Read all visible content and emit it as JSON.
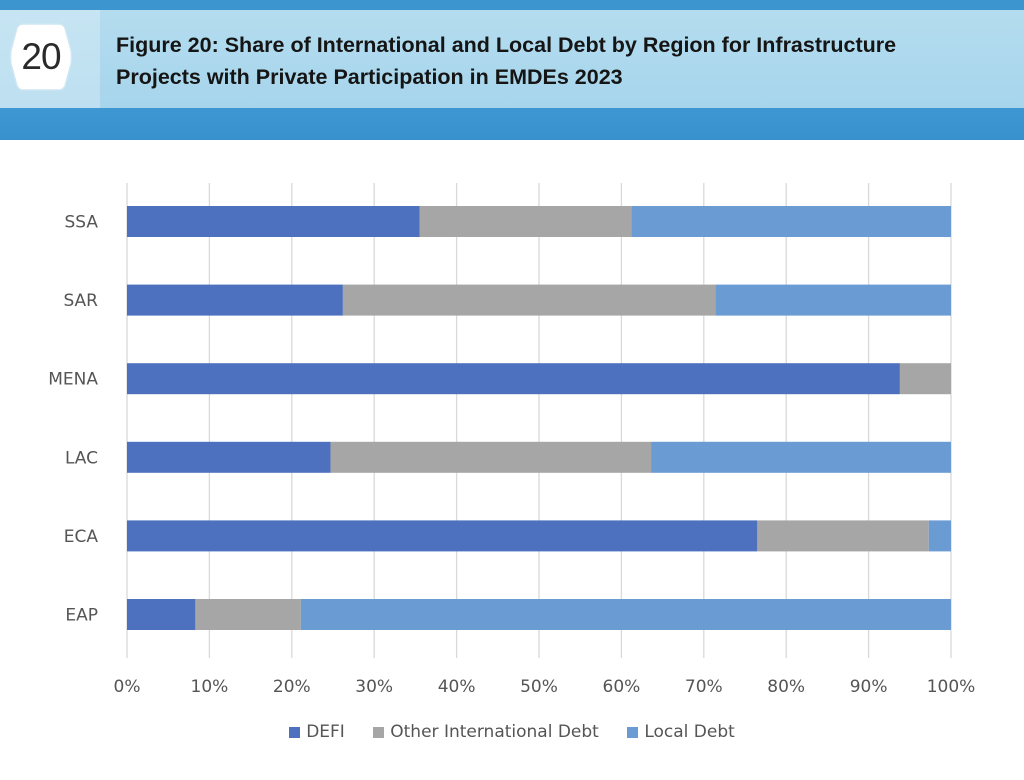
{
  "header": {
    "figure_number": "20",
    "title_line1": "Figure 20: Share of International and Local Debt by Region for Infrastructure",
    "title_line2": "Projects with Private Participation in EMDEs 2023"
  },
  "colors": {
    "defi": "#4e71bf",
    "other_international": "#a6a6a6",
    "local": "#6a9bd3",
    "grid": "#d9d9d9",
    "tick_text": "#555555",
    "header_band": "#a7d5ec",
    "header_stripe": "#3e97d2"
  },
  "chart_data": {
    "type": "bar",
    "orientation": "horizontal",
    "stacked": true,
    "percent_stacked": true,
    "categories": [
      "SSA",
      "SAR",
      "MENA",
      "LAC",
      "ECA",
      "EAP"
    ],
    "series": [
      {
        "name": "DEFI",
        "values": [
          35.5,
          26.2,
          93.8,
          24.7,
          76.5,
          8.3
        ]
      },
      {
        "name": "Other International Debt",
        "values": [
          25.7,
          45.2,
          6.2,
          38.9,
          20.8,
          12.8
        ]
      },
      {
        "name": "Local Debt",
        "values": [
          38.8,
          28.6,
          0,
          36.4,
          2.7,
          78.9
        ]
      }
    ],
    "xlim": [
      0,
      100
    ],
    "xticks": [
      "0%",
      "10%",
      "20%",
      "30%",
      "40%",
      "50%",
      "60%",
      "70%",
      "80%",
      "90%",
      "100%"
    ],
    "grid": "vertical",
    "legend_position": "bottom",
    "xlabel": "",
    "ylabel": ""
  }
}
